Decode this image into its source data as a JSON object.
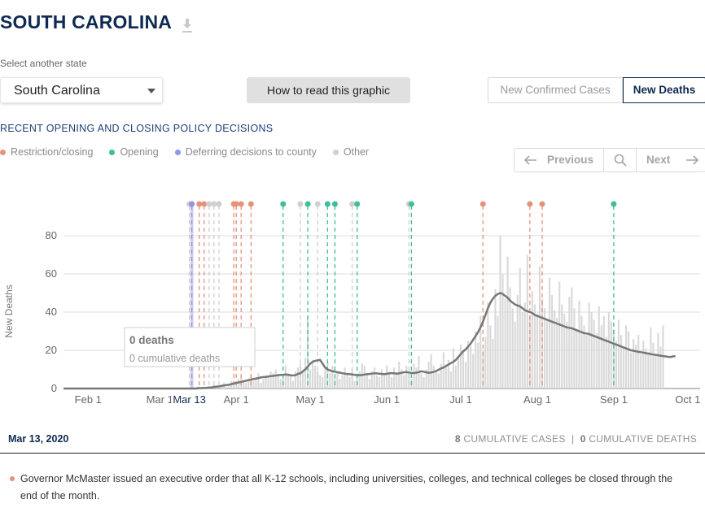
{
  "header": {
    "title": "SOUTH CAROLINA",
    "download_icon": "download-icon"
  },
  "state_select": {
    "label": "Select another state",
    "value": "South Carolina"
  },
  "how_button": {
    "label": "How to read this graphic"
  },
  "metric_toggle": {
    "options": [
      "New Confirmed Cases",
      "New Deaths"
    ],
    "selected": "New Deaths"
  },
  "policy": {
    "heading": "RECENT OPENING AND CLOSING POLICY DECISIONS",
    "legend": [
      {
        "label": "Restriction/closing",
        "color": "#e8917a"
      },
      {
        "label": "Opening",
        "color": "#3dbf9a"
      },
      {
        "label": "Deferring decisions to county",
        "color": "#8e96e6"
      },
      {
        "label": "Other",
        "color": "#cfcfcf"
      }
    ]
  },
  "pager": {
    "previous": "Previous",
    "next": "Next"
  },
  "chart_data": {
    "type": "bar",
    "ylabel": "New Deaths",
    "ylim": [
      0,
      80
    ],
    "yticks": [
      0,
      20,
      40,
      60,
      80
    ],
    "x_start": "2020-01-22",
    "x_end": "2020-10-06",
    "xticks": [
      {
        "date": "2020-02-01",
        "label": "Feb 1"
      },
      {
        "date": "2020-03-01",
        "label": "Mar 1"
      },
      {
        "date": "2020-04-01",
        "label": "Apr 1"
      },
      {
        "date": "2020-05-01",
        "label": "May 1"
      },
      {
        "date": "2020-06-01",
        "label": "Jun 1"
      },
      {
        "date": "2020-07-01",
        "label": "Jul 1"
      },
      {
        "date": "2020-08-01",
        "label": "Aug 1"
      },
      {
        "date": "2020-09-01",
        "label": "Sep 1"
      },
      {
        "date": "2020-10-01",
        "label": "Oct 1"
      }
    ],
    "selected_date": {
      "date": "2020-03-13",
      "label": "Mar 13"
    },
    "grid": true,
    "daily_deaths_start": "2020-03-16",
    "daily_deaths": [
      0,
      1,
      0,
      1,
      0,
      0,
      1,
      2,
      1,
      0,
      2,
      3,
      1,
      2,
      4,
      3,
      2,
      5,
      6,
      4,
      3,
      5,
      7,
      4,
      6,
      8,
      3,
      5,
      7,
      6,
      9,
      8,
      10,
      7,
      5,
      6,
      12,
      8,
      7,
      4,
      9,
      11,
      13,
      9,
      16,
      38,
      10,
      15,
      12,
      9,
      7,
      6,
      10,
      14,
      8,
      12,
      6,
      9,
      5,
      7,
      11,
      8,
      6,
      10,
      4,
      8,
      9,
      13,
      12,
      7,
      5,
      9,
      11,
      7,
      6,
      10,
      8,
      12,
      9,
      6,
      11,
      8,
      14,
      10,
      7,
      12,
      9,
      5,
      13,
      11,
      17,
      8,
      6,
      10,
      14,
      18,
      12,
      9,
      8,
      13,
      19,
      11,
      15,
      9,
      21,
      12,
      17,
      23,
      19,
      14,
      25,
      22,
      18,
      30,
      24,
      38,
      20,
      27,
      45,
      33,
      26,
      52,
      38,
      80,
      60,
      47,
      69,
      53,
      42,
      35,
      49,
      63,
      40,
      45,
      70,
      38,
      51,
      44,
      39,
      64,
      47,
      42,
      36,
      58,
      49,
      41,
      37,
      56,
      44,
      39,
      35,
      48,
      53,
      42,
      30,
      46,
      38,
      33,
      28,
      45,
      40,
      36,
      29,
      43,
      33,
      38,
      27,
      40,
      35,
      31,
      25,
      36,
      28,
      22,
      33,
      30,
      19,
      26,
      23,
      28,
      18,
      25,
      21,
      19,
      32,
      24,
      17,
      29,
      22,
      33
    ],
    "rolling_avg_start": "2020-03-16",
    "rolling_avg": [
      0.1,
      0.2,
      0.2,
      0.3,
      0.4,
      0.5,
      0.6,
      0.8,
      1,
      1.1,
      1.3,
      1.6,
      1.8,
      2,
      2.3,
      2.6,
      2.9,
      3.2,
      3.5,
      3.8,
      4.1,
      4.4,
      4.7,
      5,
      5.2,
      5.5,
      5.8,
      6,
      6.1,
      6.3,
      6.5,
      6.6,
      6.8,
      7,
      7.1,
      7.2,
      7.3,
      7.2,
      7,
      6.8,
      7,
      7.6,
      8,
      9,
      10,
      11.5,
      13,
      14,
      14.5,
      14.8,
      15,
      13,
      11,
      10,
      9.5,
      9,
      8.8,
      8.5,
      8.3,
      8,
      7.8,
      7.6,
      7.5,
      7.3,
      7.2,
      7,
      7,
      7.1,
      7.3,
      7.5,
      7.6,
      7.8,
      8,
      7.9,
      7.8,
      7.6,
      7.5,
      7.7,
      7.9,
      8.1,
      8,
      7.8,
      7.9,
      8.2,
      8.5,
      8.6,
      8.4,
      8.2,
      8.1,
      8.3,
      8.6,
      9,
      8.8,
      8.5,
      8.2,
      8.4,
      8.7,
      9.2,
      9.8,
      10.5,
      11,
      11.8,
      12.5,
      13.3,
      14,
      15,
      16.5,
      18,
      19.5,
      20.5,
      22,
      23.5,
      25.5,
      27.5,
      29.5,
      32,
      35,
      38.5,
      42,
      45,
      47,
      48.5,
      49.5,
      50,
      49.5,
      48.5,
      47.5,
      46,
      45,
      44,
      43.5,
      43,
      42,
      41,
      40.5,
      40,
      39.5,
      38.5,
      38,
      37.5,
      37,
      36.5,
      36,
      35.5,
      35,
      34.5,
      34,
      33.5,
      33,
      32.5,
      32,
      31.8,
      31.5,
      31,
      30.5,
      30,
      29.5,
      29,
      28.8,
      28.5,
      28,
      27.5,
      27,
      26.5,
      26,
      25.5,
      25,
      24.5,
      24,
      23.5,
      23,
      22.5,
      22,
      21.5,
      21,
      20.5,
      20,
      19.8,
      19.5,
      19.2,
      19,
      18.8,
      18.5,
      18.3,
      18,
      17.8,
      17.6,
      17.4,
      17.2,
      17,
      16.8,
      16.6,
      16.5,
      16.8,
      17
    ],
    "policy_events": [
      {
        "date": "2020-03-13",
        "type": "Other"
      },
      {
        "date": "2020-03-14",
        "type": "Restriction/closing"
      },
      {
        "date": "2020-03-14",
        "type": "Deferring decisions to county"
      },
      {
        "date": "2020-03-17",
        "type": "Restriction/closing"
      },
      {
        "date": "2020-03-19",
        "type": "Restriction/closing"
      },
      {
        "date": "2020-03-21",
        "type": "Other"
      },
      {
        "date": "2020-03-23",
        "type": "Other"
      },
      {
        "date": "2020-03-25",
        "type": "Other"
      },
      {
        "date": "2020-03-31",
        "type": "Restriction/closing"
      },
      {
        "date": "2020-04-01",
        "type": "Restriction/closing"
      },
      {
        "date": "2020-04-03",
        "type": "Restriction/closing"
      },
      {
        "date": "2020-04-07",
        "type": "Restriction/closing"
      },
      {
        "date": "2020-04-20",
        "type": "Opening"
      },
      {
        "date": "2020-04-27",
        "type": "Other"
      },
      {
        "date": "2020-04-30",
        "type": "Opening"
      },
      {
        "date": "2020-05-04",
        "type": "Other"
      },
      {
        "date": "2020-05-08",
        "type": "Opening"
      },
      {
        "date": "2020-05-11",
        "type": "Opening"
      },
      {
        "date": "2020-05-18",
        "type": "Other"
      },
      {
        "date": "2020-05-20",
        "type": "Opening"
      },
      {
        "date": "2020-06-10",
        "type": "Other"
      },
      {
        "date": "2020-06-11",
        "type": "Opening"
      },
      {
        "date": "2020-07-10",
        "type": "Restriction/closing"
      },
      {
        "date": "2020-07-29",
        "type": "Restriction/closing"
      },
      {
        "date": "2020-08-03",
        "type": "Restriction/closing"
      },
      {
        "date": "2020-09-01",
        "type": "Opening"
      }
    ]
  },
  "tooltip": {
    "title": "0 deaths",
    "subtitle": "0 cumulative deaths"
  },
  "footer": {
    "date": "Mar 13, 2020",
    "cases_count": "8",
    "cases_label": "CUMULATIVE CASES",
    "separator": "|",
    "deaths_count": "0",
    "deaths_label": "CUMULATIVE DEATHS"
  },
  "event": {
    "type": "Restriction/closing",
    "text": "Governor McMaster issued an executive order that all K-12 schools, including universities, colleges, and technical colleges be closed through the end of the month."
  }
}
